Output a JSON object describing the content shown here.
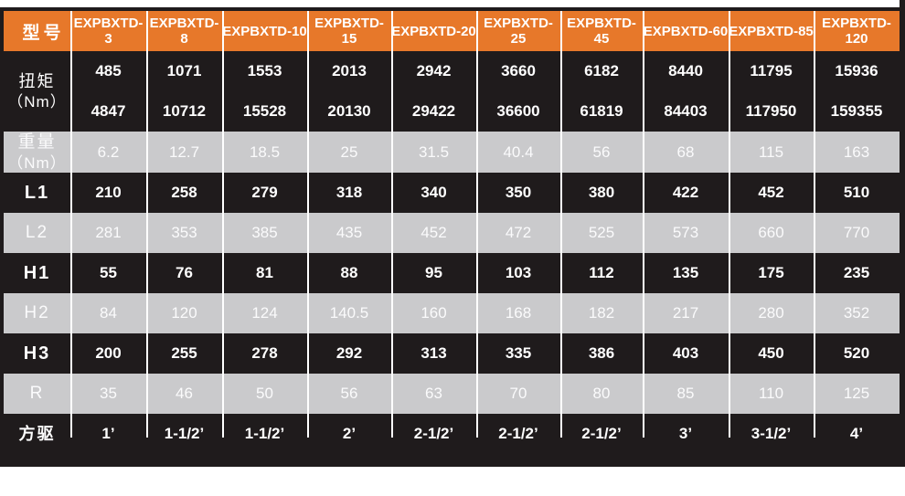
{
  "colors": {
    "header_bg": "#e7782a",
    "dark_bg": "#1f1b1c",
    "gray_bg": "#cacacc",
    "separator": "#ffffff",
    "text": "#ffffff"
  },
  "header": {
    "label": "型号",
    "models": [
      "EXPBXTD-3",
      "EXPBXTD-8",
      "EXPBXTD-10",
      "EXPBXTD-15",
      "EXPBXTD-20",
      "EXPBXTD-25",
      "EXPBXTD-45",
      "EXPBXTD-60",
      "EXPBXTD-85",
      "EXPBXTD-120"
    ]
  },
  "rows": [
    {
      "id": "torque",
      "kind": "dark-double",
      "label_lines": [
        "扭矩",
        "（Nm）"
      ],
      "values_top": [
        "485",
        "1071",
        "1553",
        "2013",
        "2942",
        "3660",
        "6182",
        "8440",
        "11795",
        "15936"
      ],
      "values_bottom": [
        "4847",
        "10712",
        "15528",
        "20130",
        "29422",
        "36600",
        "61819",
        "84403",
        "117950",
        "159355"
      ]
    },
    {
      "id": "weight",
      "kind": "gray",
      "label_lines": [
        "重量",
        "（Nm）"
      ],
      "values": [
        "6.2",
        "12.7",
        "18.5",
        "25",
        "31.5",
        "40.4",
        "56",
        "68",
        "115",
        "163"
      ]
    },
    {
      "id": "l1",
      "kind": "dark",
      "label_lines": [
        "L1"
      ],
      "values": [
        "210",
        "258",
        "279",
        "318",
        "340",
        "350",
        "380",
        "422",
        "452",
        "510"
      ]
    },
    {
      "id": "l2",
      "kind": "gray",
      "label_lines": [
        "L2"
      ],
      "values": [
        "281",
        "353",
        "385",
        "435",
        "452",
        "472",
        "525",
        "573",
        "660",
        "770"
      ]
    },
    {
      "id": "h1",
      "kind": "dark",
      "label_lines": [
        "H1"
      ],
      "values": [
        "55",
        "76",
        "81",
        "88",
        "95",
        "103",
        "112",
        "135",
        "175",
        "235"
      ]
    },
    {
      "id": "h2",
      "kind": "gray",
      "label_lines": [
        "H2"
      ],
      "values": [
        "84",
        "120",
        "124",
        "140.5",
        "160",
        "168",
        "182",
        "217",
        "280",
        "352"
      ]
    },
    {
      "id": "h3",
      "kind": "dark",
      "label_lines": [
        "H3"
      ],
      "values": [
        "200",
        "255",
        "278",
        "292",
        "313",
        "335",
        "386",
        "403",
        "450",
        "520"
      ]
    },
    {
      "id": "r",
      "kind": "gray",
      "label_lines": [
        "R"
      ],
      "values": [
        "35",
        "46",
        "50",
        "56",
        "63",
        "70",
        "80",
        "85",
        "110",
        "125"
      ]
    },
    {
      "id": "drive",
      "kind": "dark-last",
      "label_lines": [
        "方驱"
      ],
      "values": [
        "1’",
        "1-1/2’",
        "1-1/2’",
        "2’",
        "2-1/2’",
        "2-1/2’",
        "2-1/2’",
        "3’",
        "3-1/2’",
        "4’"
      ]
    }
  ]
}
